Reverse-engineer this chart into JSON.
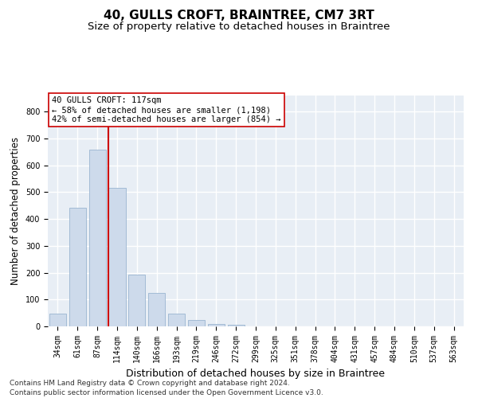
{
  "title": "40, GULLS CROFT, BRAINTREE, CM7 3RT",
  "subtitle": "Size of property relative to detached houses in Braintree",
  "xlabel": "Distribution of detached houses by size in Braintree",
  "ylabel": "Number of detached properties",
  "categories": [
    "34sqm",
    "61sqm",
    "87sqm",
    "114sqm",
    "140sqm",
    "166sqm",
    "193sqm",
    "219sqm",
    "246sqm",
    "272sqm",
    "299sqm",
    "325sqm",
    "351sqm",
    "378sqm",
    "404sqm",
    "431sqm",
    "457sqm",
    "484sqm",
    "510sqm",
    "537sqm",
    "563sqm"
  ],
  "values": [
    47,
    443,
    657,
    515,
    193,
    126,
    48,
    24,
    10,
    5,
    0,
    0,
    0,
    0,
    0,
    0,
    0,
    0,
    0,
    0,
    0
  ],
  "bar_color": "#cddaeb",
  "bar_edge_color": "#9ab5d0",
  "vline_color": "#cc0000",
  "vline_index": 3,
  "annotation_line1": "40 GULLS CROFT: 117sqm",
  "annotation_line2": "← 58% of detached houses are smaller (1,198)",
  "annotation_line3": "42% of semi-detached houses are larger (854) →",
  "annotation_box_color": "#ffffff",
  "annotation_box_edge": "#cc0000",
  "ylim": [
    0,
    860
  ],
  "yticks": [
    0,
    100,
    200,
    300,
    400,
    500,
    600,
    700,
    800
  ],
  "background_color": "#e8eef5",
  "grid_color": "#ffffff",
  "footer": "Contains HM Land Registry data © Crown copyright and database right 2024.\nContains public sector information licensed under the Open Government Licence v3.0.",
  "title_fontsize": 11,
  "subtitle_fontsize": 9.5,
  "xlabel_fontsize": 9,
  "ylabel_fontsize": 8.5,
  "tick_fontsize": 7,
  "annotation_fontsize": 7.5,
  "footer_fontsize": 6.5
}
